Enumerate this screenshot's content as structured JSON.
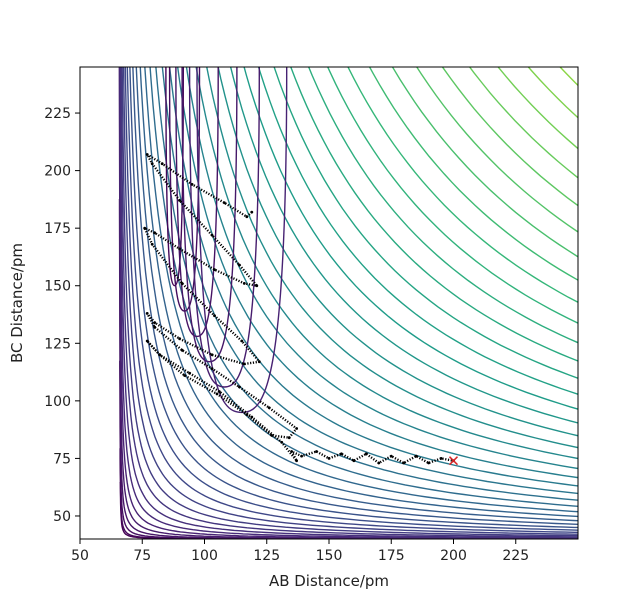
{
  "chart_data": {
    "type": "contour",
    "title": "",
    "xlabel": "AB Distance/pm",
    "ylabel": "BC Distance/pm",
    "xlim": [
      50,
      250
    ],
    "ylim": [
      40,
      245
    ],
    "xticks": [
      "50",
      "75",
      "100",
      "125",
      "150",
      "175",
      "200",
      "225"
    ],
    "yticks": [
      "50",
      "75",
      "100",
      "125",
      "150",
      "175",
      "200",
      "225"
    ],
    "colormap": "viridis",
    "grid": false,
    "legend": "none",
    "series": [
      {
        "type": "trajectory",
        "color": "#000000",
        "points": [
          [
            119,
            182
          ],
          [
            117,
            180
          ],
          [
            108,
            186
          ],
          [
            95,
            194
          ],
          [
            83,
            203
          ],
          [
            77,
            207
          ],
          [
            79,
            203
          ],
          [
            90,
            187
          ],
          [
            103,
            172
          ],
          [
            114,
            159
          ],
          [
            121,
            150
          ],
          [
            116,
            151
          ],
          [
            104,
            157
          ],
          [
            90,
            166
          ],
          [
            80,
            173
          ],
          [
            76,
            175
          ],
          [
            79,
            168
          ],
          [
            91,
            151
          ],
          [
            104,
            137
          ],
          [
            115,
            126
          ],
          [
            122,
            117
          ],
          [
            116,
            116
          ],
          [
            103,
            120
          ],
          [
            90,
            127
          ],
          [
            80,
            134
          ],
          [
            77,
            138
          ],
          [
            80,
            132
          ],
          [
            91,
            122
          ],
          [
            103,
            114
          ],
          [
            114,
            106
          ],
          [
            126,
            97
          ],
          [
            137,
            88
          ],
          [
            134,
            84
          ],
          [
            127,
            85
          ],
          [
            117,
            94
          ],
          [
            105,
            103
          ],
          [
            92,
            111
          ],
          [
            82,
            120
          ],
          [
            77,
            126
          ],
          [
            82,
            120
          ],
          [
            94,
            112
          ],
          [
            106,
            104
          ],
          [
            119,
            93
          ],
          [
            131,
            82
          ],
          [
            137,
            74
          ],
          [
            135,
            78
          ],
          [
            139,
            76
          ],
          [
            145,
            78
          ],
          [
            150,
            75
          ],
          [
            155,
            77
          ],
          [
            160,
            74
          ],
          [
            165,
            77
          ],
          [
            170,
            73
          ],
          [
            175,
            76
          ],
          [
            180,
            73
          ],
          [
            185,
            76
          ],
          [
            190,
            73
          ],
          [
            195,
            75
          ],
          [
            200,
            74
          ]
        ]
      },
      {
        "type": "end-marker",
        "marker": "x",
        "color": "#d62728",
        "point": [
          200,
          74
        ]
      }
    ]
  }
}
